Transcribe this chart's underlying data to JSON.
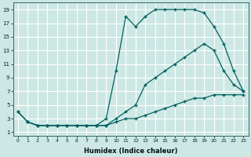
{
  "xlabel": "Humidex (Indice chaleur)",
  "bg_color": "#cde8e4",
  "grid_color": "#ffffff",
  "line_color": "#006060",
  "xlim_min": -0.5,
  "xlim_max": 23.5,
  "ylim_min": 0.5,
  "ylim_max": 20.0,
  "xticks": [
    0,
    1,
    2,
    3,
    4,
    5,
    6,
    7,
    8,
    9,
    10,
    11,
    12,
    13,
    14,
    15,
    16,
    17,
    18,
    19,
    20,
    21,
    22,
    23
  ],
  "yticks": [
    1,
    3,
    5,
    7,
    9,
    11,
    13,
    15,
    17,
    19
  ],
  "line_bottom_x": [
    0,
    1,
    2,
    3,
    4,
    5,
    6,
    7,
    8,
    9,
    10,
    11,
    12,
    13,
    14,
    15,
    16,
    17,
    18,
    19,
    20,
    21,
    22,
    23
  ],
  "line_bottom_y": [
    4,
    2.5,
    2,
    2,
    2,
    2,
    2,
    2,
    2,
    2,
    2.5,
    3,
    3,
    3.5,
    4,
    4.5,
    5,
    5.5,
    6,
    6,
    6.5,
    6.5,
    6.5,
    6.5
  ],
  "line_mid_x": [
    0,
    1,
    2,
    3,
    4,
    5,
    6,
    7,
    8,
    9,
    10,
    11,
    12,
    13,
    14,
    15,
    16,
    17,
    18,
    19,
    20,
    21,
    22,
    23
  ],
  "line_mid_y": [
    4,
    2.5,
    2,
    2,
    2,
    2,
    2,
    2,
    2,
    2,
    3,
    4,
    5,
    8,
    9,
    10,
    11,
    12,
    13,
    14,
    13,
    10,
    8,
    7
  ],
  "line_top_x": [
    1,
    2,
    3,
    4,
    5,
    6,
    7,
    8,
    9,
    10,
    11,
    12,
    13,
    14,
    15,
    16,
    17,
    18,
    19,
    20,
    21,
    22,
    23
  ],
  "line_top_y": [
    2.5,
    2,
    2,
    2,
    2,
    2,
    2,
    2,
    3,
    10,
    18,
    16.5,
    18,
    19,
    19,
    19,
    19,
    19,
    18.5,
    16.5,
    14,
    10,
    7
  ]
}
